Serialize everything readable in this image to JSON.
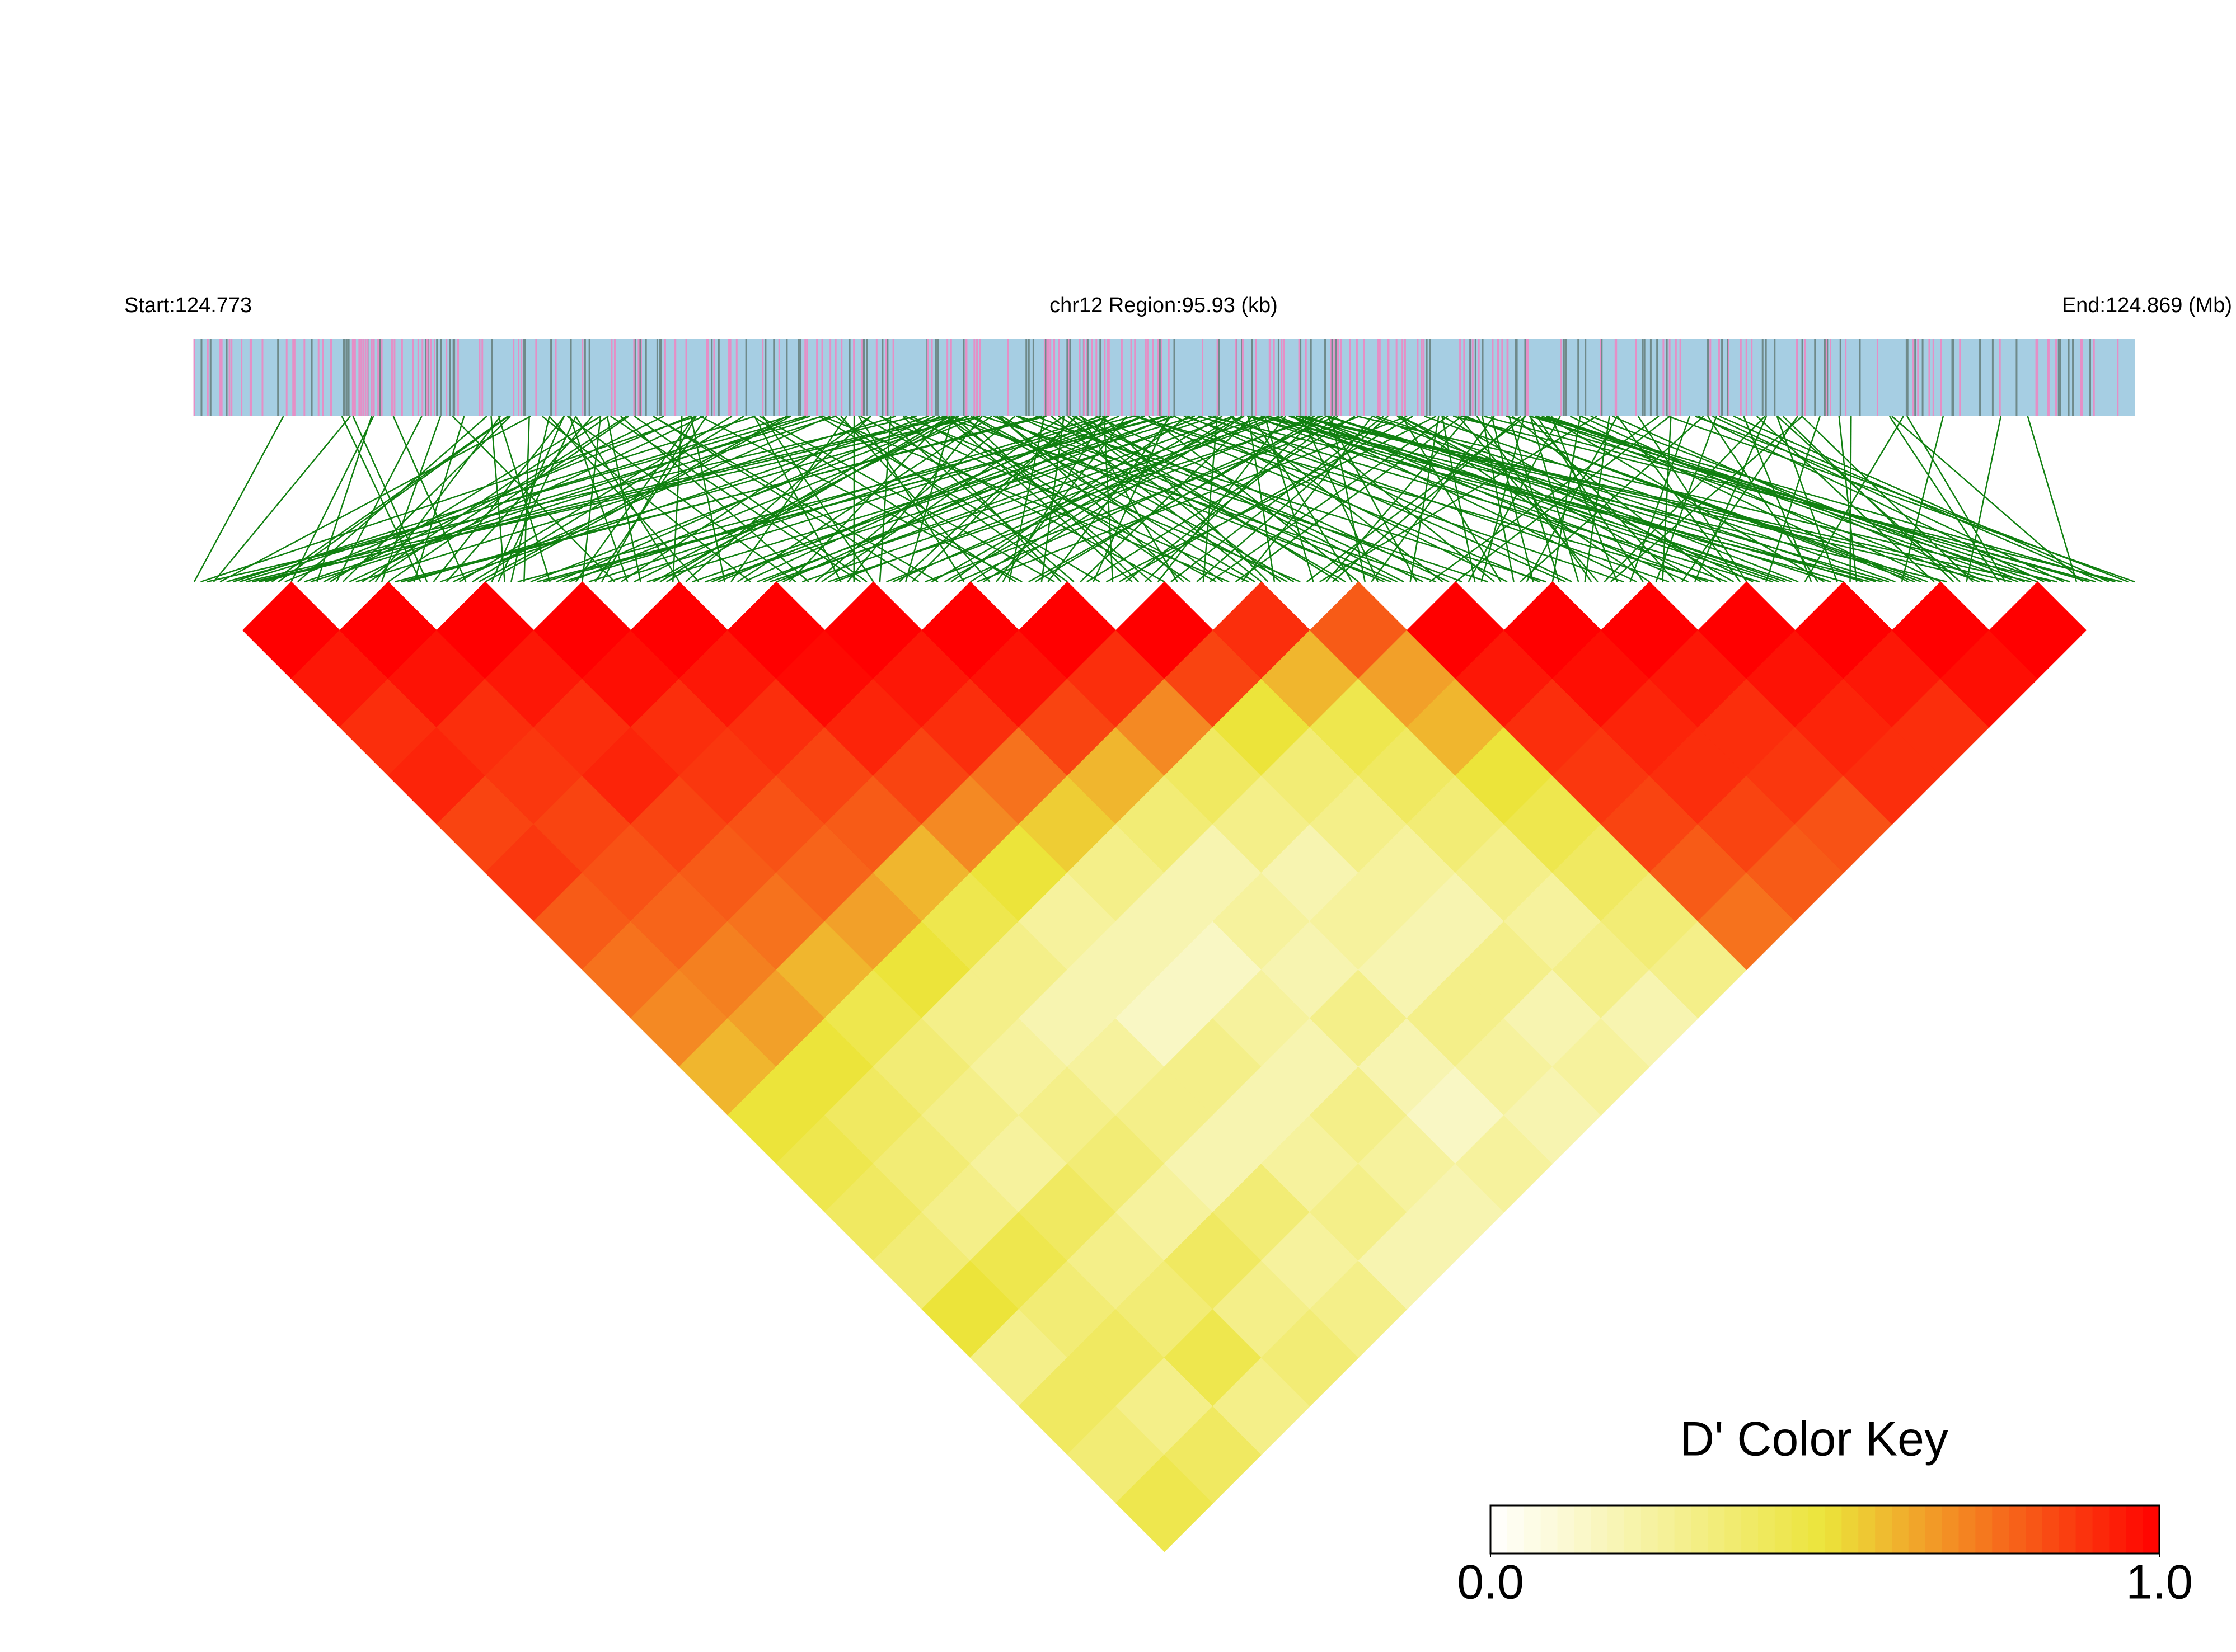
{
  "chart_data": {
    "type": "ld-heatmap",
    "start_label": "Start:124.773",
    "region_label": "chr12 Region:95.93 (kb)",
    "end_label": "End:124.869 (Mb)",
    "colorkey_title": "D' Color Key",
    "colors": [
      "#ffffff",
      "#ece43a",
      "#ff0000"
    ],
    "zlim": [
      0,
      1
    ],
    "zticks": [
      {
        "value": 0,
        "label": "0.0"
      },
      {
        "value": 1,
        "label": "1.0"
      }
    ],
    "values": [
      [
        1,
        0.95,
        0.9,
        0.92,
        0.85,
        0.88,
        0.8,
        0.75,
        0.7,
        0.6,
        0.5,
        0.45,
        0.4,
        0.35,
        0.5,
        0.3,
        0.4,
        0.35,
        0.45
      ],
      [
        1,
        0.96,
        0.9,
        0.88,
        0.85,
        0.82,
        0.78,
        0.72,
        0.65,
        0.5,
        0.4,
        0.35,
        0.3,
        0.45,
        0.35,
        0.4,
        0.3,
        0.4
      ],
      [
        1,
        0.95,
        0.9,
        0.92,
        0.85,
        0.8,
        0.75,
        0.6,
        0.45,
        0.35,
        0.3,
        0.25,
        0.4,
        0.3,
        0.35,
        0.45,
        0.3
      ],
      [
        1,
        0.97,
        0.9,
        0.88,
        0.82,
        0.78,
        0.65,
        0.5,
        0.3,
        0.25,
        0.3,
        0.35,
        0.25,
        0.4,
        0.3,
        0.35
      ],
      [
        1,
        0.95,
        0.9,
        0.85,
        0.8,
        0.6,
        0.45,
        0.3,
        0.2,
        0.25,
        0.3,
        0.2,
        0.35,
        0.25,
        0.3
      ],
      [
        1,
        0.98,
        0.92,
        0.85,
        0.7,
        0.5,
        0.25,
        0.2,
        0.15,
        0.3,
        0.2,
        0.25,
        0.3,
        0.2
      ],
      [
        1,
        0.95,
        0.9,
        0.75,
        0.55,
        0.3,
        0.2,
        0.15,
        0.25,
        0.2,
        0.3,
        0.25,
        0.2
      ],
      [
        1,
        0.96,
        0.85,
        0.6,
        0.35,
        0.2,
        0.25,
        0.2,
        0.3,
        0.2,
        0.15,
        0.25
      ],
      [
        1,
        0.9,
        0.7,
        0.4,
        0.3,
        0.2,
        0.25,
        0.2,
        0.3,
        0.25,
        0.2
      ],
      [
        1,
        0.85,
        0.5,
        0.35,
        0.3,
        0.25,
        0.2,
        0.3,
        0.2,
        0.25
      ],
      [
        0.9,
        0.6,
        0.45,
        0.4,
        0.35,
        0.3,
        0.25,
        0.3,
        0.2
      ],
      [
        0.8,
        0.65,
        0.6,
        0.5,
        0.45,
        0.4,
        0.35,
        0.3
      ],
      [
        1,
        0.95,
        0.9,
        0.88,
        0.85,
        0.8,
        0.75
      ],
      [
        1,
        0.97,
        0.92,
        0.9,
        0.85,
        0.8
      ],
      [
        1,
        0.95,
        0.9,
        0.88,
        0.82
      ],
      [
        1,
        0.96,
        0.92,
        0.9
      ],
      [
        1,
        0.95,
        0.9
      ],
      [
        1,
        0.97
      ],
      [
        1
      ]
    ]
  }
}
